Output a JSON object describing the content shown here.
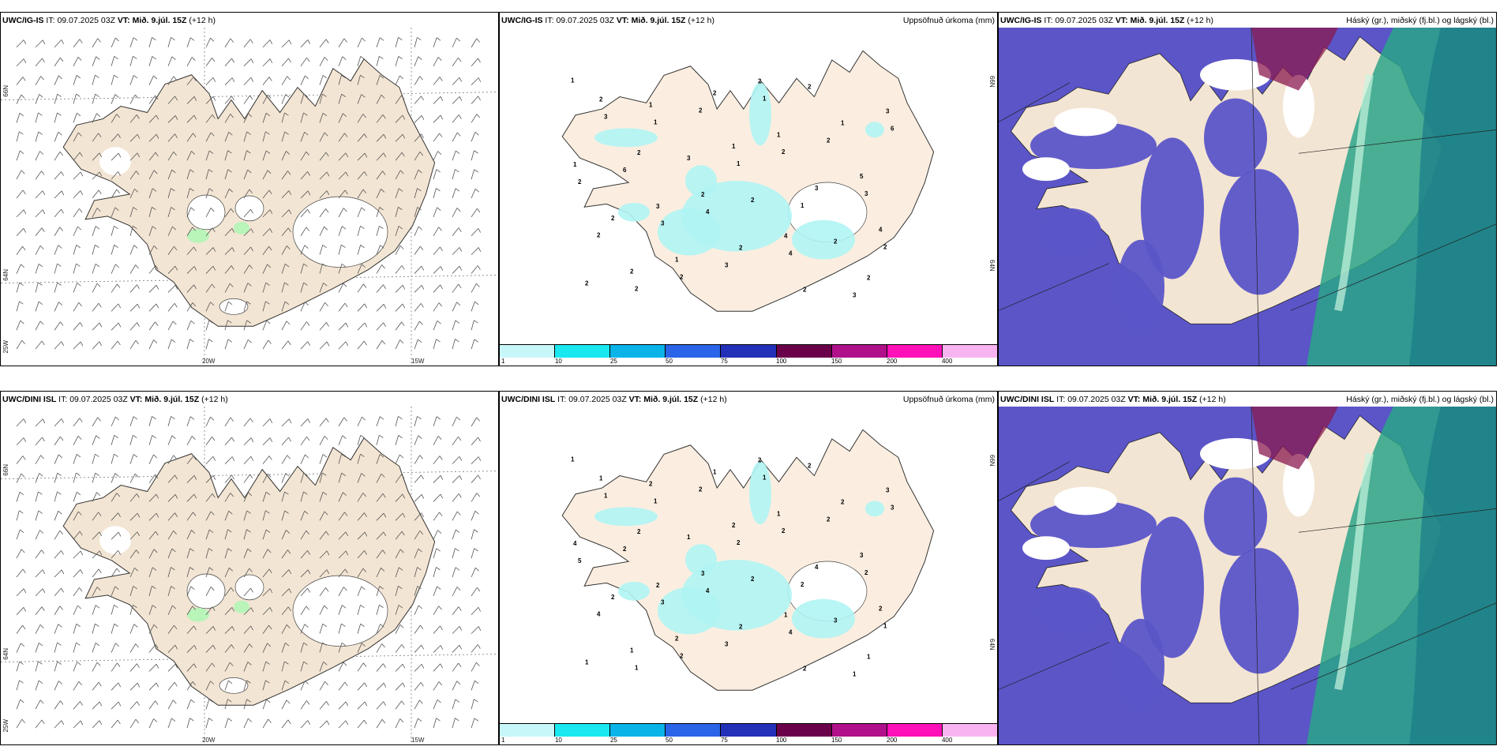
{
  "rows": [
    {
      "wind_title": {
        "model": "UWC/IG-IS",
        "it_label": "IT:",
        "it_value": "09.07.2025 03Z",
        "vt_label": "VT:",
        "vt_value": "Mið. 9.júl. 15Z",
        "offset": "(+12 h)"
      },
      "precip_title": {
        "model": "UWC/IG-IS",
        "it_label": "IT:",
        "it_value": "09.07.2025 03Z",
        "vt_label": "VT:",
        "vt_value": "Mið. 9.júl. 15Z",
        "offset": "(+12 h)",
        "right": "Uppsöfnuð úrkoma (mm)"
      },
      "cloud_title": {
        "model": "UWC/IG-IS",
        "it_label": "IT:",
        "it_value": "09.07.2025 03Z",
        "vt_label": "VT:",
        "vt_value": "Mið. 9.júl. 15Z",
        "offset": "(+12 h)",
        "right": "Háský (gr.), miðský (fj.bl.) og lágský (bl.)"
      },
      "precip_values": [
        "1",
        "1",
        "1",
        "1",
        "2",
        "2",
        "2",
        "2",
        "3",
        "2",
        "2",
        "1",
        "2",
        "2",
        "3",
        "3",
        "2",
        "6",
        "6",
        "4",
        "4",
        "3",
        "3",
        "3",
        "2",
        "2",
        "2",
        "1",
        "1",
        "3",
        "4",
        "2",
        "2",
        "1",
        "5",
        "2",
        "1",
        "2",
        "1",
        "1",
        "3",
        "2",
        "2",
        "3",
        "2",
        "2",
        "4",
        "2",
        "2"
      ]
    },
    {
      "wind_title": {
        "model": "UWC/DINI ISL",
        "it_label": "IT:",
        "it_value": "09.07.2025 03Z",
        "vt_label": "VT:",
        "vt_value": "Mið. 9.júl. 15Z",
        "offset": "(+12 h)"
      },
      "precip_title": {
        "model": "UWC/DINI ISL",
        "it_label": "IT:",
        "it_value": "09.07.2025 03Z",
        "vt_label": "VT:",
        "vt_value": "Mið. 9.júl. 15Z",
        "offset": "(+12 h)",
        "right": "Uppsöfnuð úrkoma (mm)"
      },
      "cloud_title": {
        "model": "UWC/DINI ISL",
        "it_label": "IT:",
        "it_value": "09.07.2025 03Z",
        "vt_label": "VT:",
        "vt_value": "Mið. 9.júl. 15Z",
        "offset": "(+12 h)",
        "right": "Háský (gr.), miðský (fj.bl.) og lágský (bl.)"
      },
      "precip_values": [
        "1",
        "1",
        "2",
        "2",
        "1",
        "1",
        "2",
        "2",
        "2",
        "4",
        "2",
        "1",
        "2",
        "5",
        "3",
        "3",
        "2",
        "3",
        "2",
        "4",
        "4",
        "1",
        "1",
        "1",
        "2",
        "3",
        "1",
        "2",
        "2",
        "4",
        "2",
        "1",
        "1",
        "1",
        "3",
        "2",
        "2",
        "2",
        "2",
        "4",
        "2",
        "2",
        "2",
        "3",
        "2",
        "3",
        "1",
        "1",
        "1"
      ]
    }
  ],
  "axis_labels": {
    "lon_20": "20W",
    "lon_15": "15W",
    "lat_66": "66N",
    "lat_64": "64N",
    "lon_25": "25W"
  },
  "colorbar": {
    "ticks": [
      "1",
      "10",
      "25",
      "50",
      "75",
      "100",
      "150",
      "200",
      "400"
    ],
    "colors": [
      "#c8f7fa",
      "#19e8f0",
      "#0ab4e8",
      "#2a64e8",
      "#2330b8",
      "#6a004a",
      "#b0108a",
      "#ff10b8",
      "#f8b4f0"
    ]
  },
  "colors": {
    "land": "#f3e5d3",
    "precip": "#b0f4f4",
    "mid_cloud": "#5b55c8",
    "high_cloud": "#2aa588",
    "low_cloud": "#2030e0"
  }
}
